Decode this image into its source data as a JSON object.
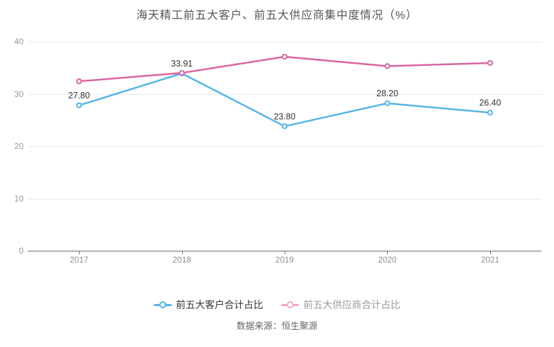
{
  "title": "海天精工前五大客户、前五大供应商集中度情况（%）",
  "source_note": "数据来源：恒生聚源",
  "colors": {
    "customer_line": "#54b4e8",
    "supplier_line": "#da639f",
    "legend_supplier_marker": "#f0a6cd",
    "grid_line": "#e2e9f0",
    "axis_line": "#6b6b6b",
    "axis_tick_label": "#8f8f8f",
    "data_label": "#333333"
  },
  "legend": {
    "items": [
      {
        "label": "前五大客户合计占比",
        "marker_color": "#54b4e8",
        "text_color": "#333333"
      },
      {
        "label": "前五大供应商合计占比",
        "marker_color": "#f0a6cd",
        "text_color": "#999999"
      }
    ]
  },
  "chart_data": {
    "type": "line",
    "title": "海天精工前五大客户、前五大供应商集中度情况（%）",
    "categories": [
      "2017",
      "2018",
      "2019",
      "2020",
      "2021"
    ],
    "series": [
      {
        "name": "前五大客户合计占比",
        "color": "#54b4e8",
        "values": [
          27.8,
          33.91,
          23.8,
          28.2,
          26.4
        ],
        "labels": [
          "27.80",
          "33.91",
          "23.80",
          "28.20",
          "26.40"
        ],
        "show_labels": true
      },
      {
        "name": "前五大供应商合计占比",
        "color": "#da639f",
        "values": [
          32.4,
          34.0,
          37.1,
          35.3,
          35.9
        ],
        "labels": [],
        "show_labels": false
      }
    ],
    "xlabel": "",
    "ylabel": "",
    "ylim": [
      0,
      40
    ],
    "yticks": [
      0,
      10,
      20,
      30,
      40
    ],
    "grid": true,
    "legend_position": "bottom"
  }
}
